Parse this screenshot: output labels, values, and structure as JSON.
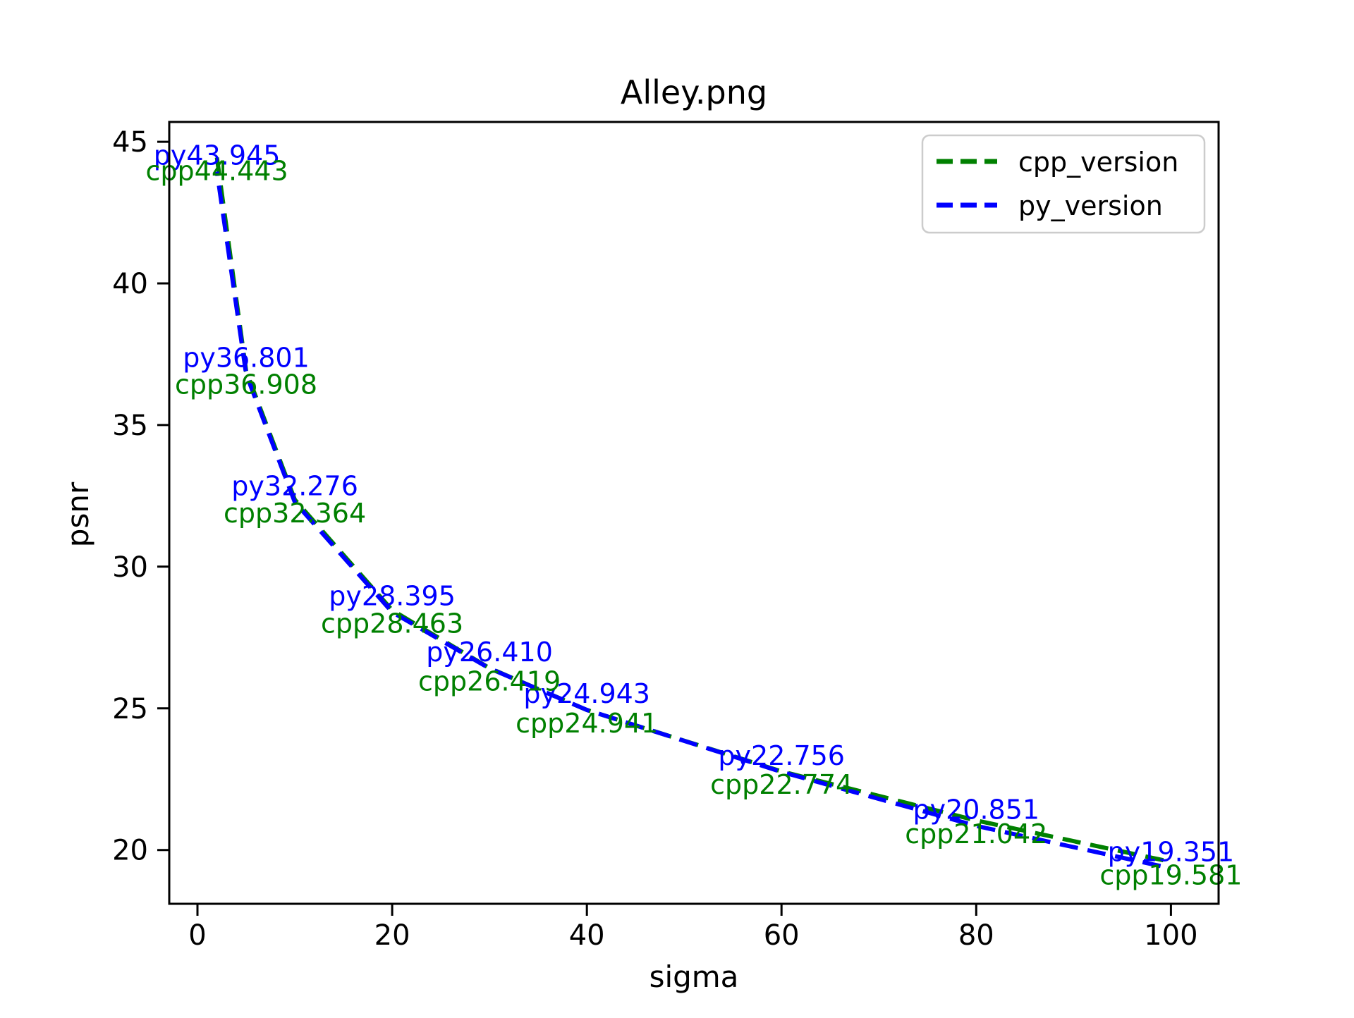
{
  "figure": {
    "background": "#ffffff",
    "title": "Alley.png"
  },
  "axes": {
    "xlabel": "sigma",
    "ylabel": "psnr",
    "xticks": [
      0,
      20,
      40,
      60,
      80,
      100
    ],
    "yticks": [
      20,
      25,
      30,
      35,
      40,
      45
    ],
    "xlim": [
      -2.9,
      104.9
    ],
    "ylim": [
      18.1,
      45.7
    ],
    "spine_color": "#000000",
    "tick_label_color": "#000000"
  },
  "legend": {
    "position": "upper right",
    "entries": [
      {
        "label": "cpp_version",
        "color": "#008000"
      },
      {
        "label": "py_version",
        "color": "#0000ff"
      }
    ],
    "border_color": "#cccccc",
    "background": "#ffffff"
  },
  "chart_data": {
    "type": "line",
    "title": "Alley.png",
    "xlabel": "sigma",
    "ylabel": "psnr",
    "x": [
      2,
      5,
      10,
      20,
      30,
      40,
      60,
      80,
      100
    ],
    "series": [
      {
        "name": "cpp_version",
        "color": "#008000",
        "linestyle": "dashed",
        "values": [
          44.443,
          36.908,
          32.364,
          28.463,
          26.419,
          24.941,
          22.774,
          21.042,
          19.581
        ],
        "point_labels": [
          "cpp44.443",
          "cpp36.908",
          "cpp32.364",
          "cpp28.463",
          "cpp26.419",
          "cpp24.941",
          "cpp22.774",
          "cpp21.042",
          "cpp19.581"
        ]
      },
      {
        "name": "py_version",
        "color": "#0000ff",
        "linestyle": "dashed",
        "values": [
          43.945,
          36.801,
          32.276,
          28.395,
          26.41,
          24.943,
          22.756,
          20.851,
          19.351
        ],
        "point_labels": [
          "py43.945",
          "py36.801",
          "py32.276",
          "py28.395",
          "py26.410",
          "py24.943",
          "py22.756",
          "py20.851",
          "py19.351"
        ]
      }
    ],
    "xlim": [
      -2.9,
      104.9
    ],
    "ylim": [
      18.1,
      45.7
    ],
    "xticks": [
      0,
      20,
      40,
      60,
      80,
      100
    ],
    "yticks": [
      20,
      25,
      30,
      35,
      40,
      45
    ],
    "grid": false,
    "legend_position": "upper right"
  }
}
